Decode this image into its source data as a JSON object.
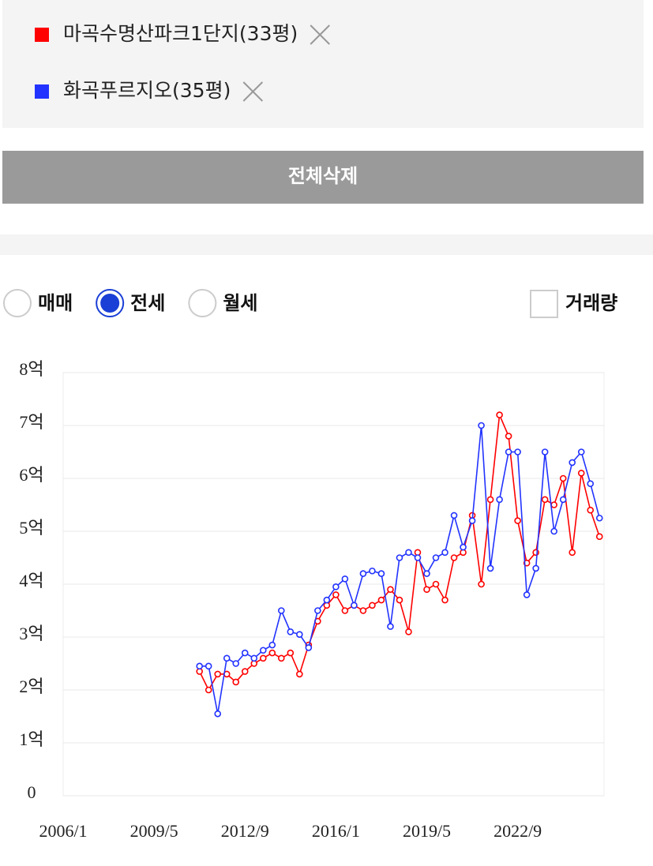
{
  "filters": {
    "clear_button": "전체삭제"
  },
  "options": {
    "trade_types": [
      "매매",
      "전세",
      "월세"
    ],
    "selected": 1,
    "volume_label": "거래량"
  },
  "chart_data": {
    "type": "line",
    "x": [
      "2011/1",
      "2011/5",
      "2011/9",
      "2012/1",
      "2012/5",
      "2012/9",
      "2013/1",
      "2013/5",
      "2013/9",
      "2014/1",
      "2014/5",
      "2014/9",
      "2015/1",
      "2015/5",
      "2015/9",
      "2016/1",
      "2016/5",
      "2016/9",
      "2017/1",
      "2017/5",
      "2017/9",
      "2018/1",
      "2018/5",
      "2018/9",
      "2019/1",
      "2019/5",
      "2019/9",
      "2020/1",
      "2020/5",
      "2020/9",
      "2021/1",
      "2021/5",
      "2021/9",
      "2022/1",
      "2022/5",
      "2022/9",
      "2023/1",
      "2023/5",
      "2023/9",
      "2024/1",
      "2024/5",
      "2024/9",
      "2025/1",
      "2025/5",
      "2025/9"
    ],
    "series": [
      {
        "name": "마곡수명산파크1단지(33평)",
        "color": "#ff0000",
        "values": [
          2.35,
          2.0,
          2.3,
          2.3,
          2.15,
          2.35,
          2.5,
          2.6,
          2.7,
          2.6,
          2.7,
          2.3,
          2.85,
          3.3,
          3.6,
          3.8,
          3.5,
          3.6,
          3.5,
          3.6,
          3.7,
          3.9,
          3.7,
          3.1,
          4.6,
          3.9,
          4.0,
          3.7,
          4.5,
          4.6,
          5.3,
          4.0,
          5.6,
          7.2,
          6.8,
          5.2,
          4.4,
          4.6,
          5.6,
          5.5,
          6.0,
          4.6,
          6.1,
          5.4,
          4.9
        ]
      },
      {
        "name": "화곡푸르지오(35평)",
        "color": "#2233ff",
        "values": [
          2.45,
          2.45,
          1.55,
          2.6,
          2.5,
          2.7,
          2.6,
          2.75,
          2.85,
          3.5,
          3.1,
          3.05,
          2.8,
          3.5,
          3.7,
          3.95,
          4.1,
          3.6,
          4.2,
          4.25,
          4.2,
          3.2,
          4.5,
          4.6,
          4.5,
          4.2,
          4.5,
          4.6,
          5.3,
          4.7,
          5.2,
          7.0,
          4.3,
          5.6,
          6.5,
          6.5,
          3.8,
          4.3,
          6.5,
          5.0,
          5.6,
          6.3,
          6.5,
          5.9,
          5.25
        ]
      }
    ],
    "xlim": [
      "2006/1",
      "2025/11"
    ],
    "xticks": [
      "2006/1",
      "2009/5",
      "2012/9",
      "2016/1",
      "2019/5",
      "2022/9"
    ],
    "ylim": [
      0,
      8
    ],
    "yticks": [
      0,
      {
        "value": 1,
        "label": "1억"
      },
      {
        "value": 2,
        "label": "2억"
      },
      {
        "value": 3,
        "label": "3억"
      },
      {
        "value": 4,
        "label": "4억"
      },
      {
        "value": 5,
        "label": "5억"
      },
      {
        "value": 6,
        "label": "6억"
      },
      {
        "value": 7,
        "label": "7억"
      },
      {
        "value": 8,
        "label": "8억"
      }
    ],
    "grid": true
  }
}
